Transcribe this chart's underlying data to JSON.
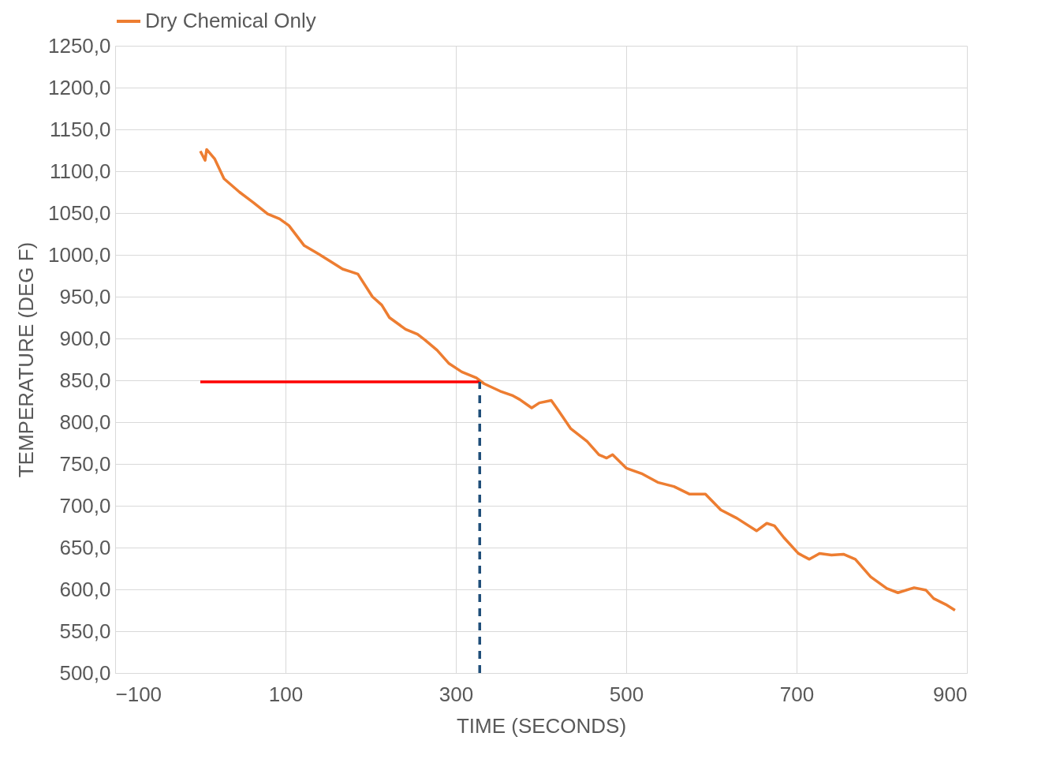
{
  "chart_data": {
    "type": "line",
    "xlabel": "TIME (SECONDS)",
    "ylabel": "TEMPERATURE (DEG F)",
    "xlim": [
      -100,
      900
    ],
    "xticks": [
      -100,
      100,
      300,
      500,
      700,
      900
    ],
    "ylim": [
      500,
      1250
    ],
    "yticks": [
      {
        "value": 500,
        "label": "500,0"
      },
      {
        "value": 550,
        "label": "550,0"
      },
      {
        "value": 600,
        "label": "600,0"
      },
      {
        "value": 650,
        "label": "650,0"
      },
      {
        "value": 700,
        "label": "700,0"
      },
      {
        "value": 750,
        "label": "750,0"
      },
      {
        "value": 800,
        "label": "800,0"
      },
      {
        "value": 850,
        "label": "850,0"
      },
      {
        "value": 900,
        "label": "900,0"
      },
      {
        "value": 950,
        "label": "950,0"
      },
      {
        "value": 1000,
        "label": "1000,0"
      },
      {
        "value": 1050,
        "label": "1050,0"
      },
      {
        "value": 1100,
        "label": "1100,0"
      },
      {
        "value": 1150,
        "label": "1150,0"
      },
      {
        "value": 1200,
        "label": "1200,0"
      },
      {
        "value": 1250,
        "label": "1250,0"
      }
    ],
    "grid": true,
    "legend": "top",
    "line_style": "solid",
    "series": [
      {
        "name": "Dry Chemical Only",
        "color": "#ed7d31",
        "x": [
          0,
          5.6,
          7.4,
          16.7,
          27.8,
          46,
          63,
          79,
          93,
          104,
          122,
          139,
          156,
          167,
          176,
          185,
          202,
          213,
          222,
          241,
          255,
          264,
          278,
          292,
          307,
          324,
          333,
          352,
          366,
          375,
          389,
          398,
          412,
          421,
          435,
          454,
          468,
          477,
          484,
          500,
          519,
          537,
          556,
          574,
          593,
          611,
          630,
          653,
          665,
          674,
          685,
          702,
          715,
          727,
          741,
          755,
          769,
          787,
          806,
          819,
          838,
          852,
          861,
          875,
          886
        ],
        "values": [
          1124,
          1113,
          1126,
          1115,
          1091,
          1075,
          1062,
          1049,
          1043,
          1035,
          1011,
          1001,
          990,
          983,
          980,
          977,
          950,
          940,
          925,
          911,
          905,
          898,
          886,
          870,
          860,
          853,
          846,
          837,
          832,
          827,
          817,
          823,
          826,
          813,
          792,
          777,
          761,
          757,
          761,
          745,
          738,
          728,
          723,
          714,
          714,
          695,
          685,
          670,
          679,
          676,
          662,
          643,
          636,
          643,
          641,
          642,
          636,
          615,
          601,
          596,
          602,
          599,
          589,
          582,
          575
        ]
      },
      {
        "color": "#ff0000",
        "x": [
          0,
          328
        ],
        "values": [
          848,
          848
        ]
      },
      {
        "color": "#1f4e79",
        "line_style": "dashed",
        "x": [
          328,
          328
        ],
        "values": [
          500,
          848
        ]
      }
    ]
  }
}
